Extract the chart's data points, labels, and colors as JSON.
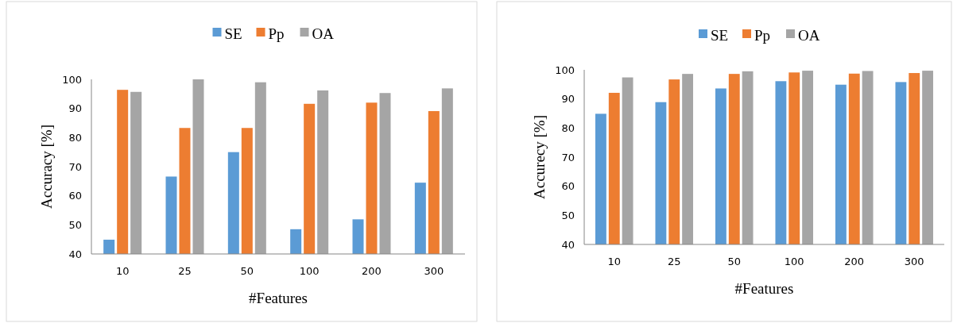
{
  "chart_data": [
    {
      "type": "bar",
      "xlabel": "#Features",
      "ylabel": "Accuracy [%]",
      "categories": [
        "10",
        "25",
        "50",
        "100",
        "200",
        "300"
      ],
      "ylim": [
        40,
        100
      ],
      "yticks": [
        40,
        50,
        60,
        70,
        80,
        90,
        100
      ],
      "grid": false,
      "legend": "top",
      "series": [
        {
          "name": "SE",
          "color": "#5b9bd5",
          "values": [
            44.9,
            66.6,
            75,
            48.5,
            51.9,
            64.5
          ]
        },
        {
          "name": "Pp",
          "color": "#ed7d31",
          "values": [
            96.4,
            83.3,
            83.3,
            91.6,
            92,
            89.1
          ]
        },
        {
          "name": "OA",
          "color": "#a5a5a5",
          "values": [
            95.7,
            100,
            99,
            96.2,
            95.3,
            96.9
          ]
        }
      ]
    },
    {
      "type": "bar",
      "xlabel": "#Features",
      "ylabel": "Accurecy [%]",
      "categories": [
        "10",
        "25",
        "50",
        "100",
        "200",
        "300"
      ],
      "ylim": [
        40,
        100
      ],
      "yticks": [
        40,
        50,
        60,
        70,
        80,
        90,
        100
      ],
      "grid": false,
      "legend": "top",
      "series": [
        {
          "name": "SE",
          "color": "#5b9bd5",
          "values": [
            84.9,
            88.9,
            93.6,
            96.1,
            94.9,
            95.8
          ]
        },
        {
          "name": "Pp",
          "color": "#ed7d31",
          "values": [
            92.1,
            96.7,
            98.6,
            99.1,
            98.7,
            98.9
          ]
        },
        {
          "name": "OA",
          "color": "#a5a5a5",
          "values": [
            97.4,
            98.6,
            99.5,
            99.7,
            99.6,
            99.7
          ]
        }
      ]
    }
  ]
}
